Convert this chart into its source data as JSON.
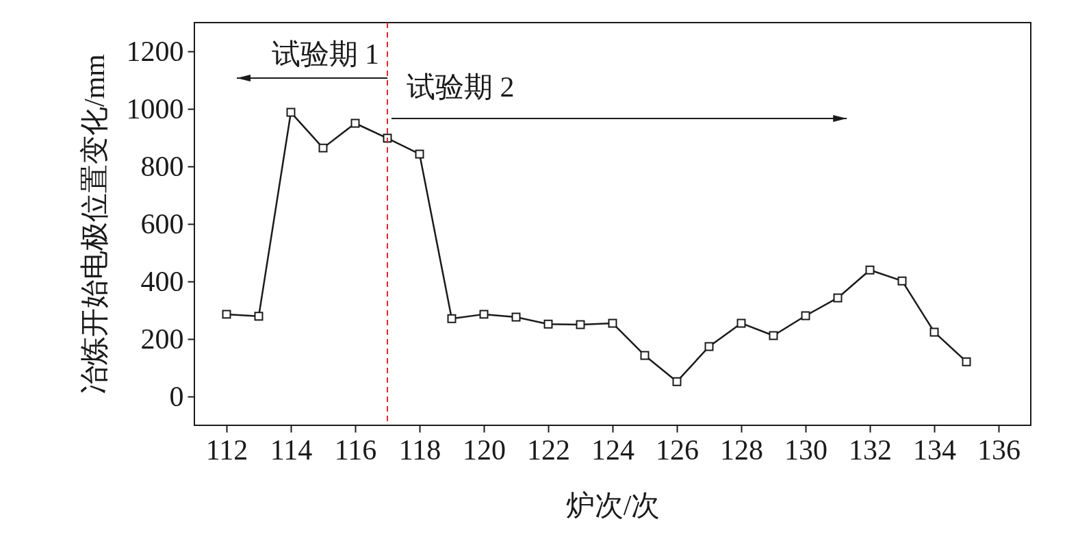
{
  "chart_data": {
    "type": "line",
    "xlabel": "炉次/次",
    "ylabel": "冶炼开始电极位置变化/mm",
    "x": [
      112,
      113,
      114,
      115,
      116,
      117,
      118,
      119,
      120,
      121,
      122,
      123,
      124,
      125,
      126,
      127,
      128,
      129,
      130,
      131,
      132,
      133,
      134,
      135
    ],
    "series": [
      {
        "color": "#1a1a1a",
        "values": [
          286,
          279,
          988,
          864,
          950,
          898,
          843,
          271,
          286,
          276,
          252,
          250,
          255,
          143,
          52,
          174,
          255,
          212,
          281,
          343,
          440,
          402,
          224,
          121
        ]
      }
    ],
    "xlim": [
      111,
      137
    ],
    "xticks": [
      112,
      114,
      116,
      118,
      120,
      122,
      124,
      126,
      128,
      130,
      132,
      134,
      136
    ],
    "ylim": [
      -100,
      1300
    ],
    "yticks": [
      0,
      200,
      400,
      600,
      800,
      1000,
      1200
    ],
    "ref_lines": [
      {
        "axis": "x",
        "value": 117,
        "color": "#e0282e",
        "line_style": "dashed"
      }
    ],
    "annotations": [
      "试验期 1",
      "试验期 2"
    ],
    "marker": "square",
    "line_style": "solid"
  }
}
